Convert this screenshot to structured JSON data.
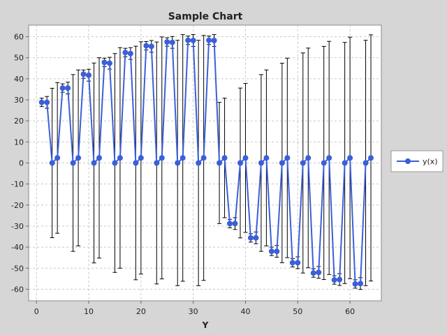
{
  "chart_data": {
    "type": "line",
    "title": "Sample Chart",
    "xlabel": "Y",
    "ylabel": "",
    "xlim": [
      -1.5,
      66
    ],
    "ylim": [
      -65.5,
      65.5
    ],
    "xticks": [
      0,
      10,
      20,
      30,
      40,
      50,
      60
    ],
    "yticks": [
      60,
      50,
      40,
      30,
      20,
      10,
      0,
      -10,
      -20,
      -30,
      -40,
      -50,
      -60
    ],
    "grid": true,
    "legend_position": "right",
    "series": [
      {
        "name": "y(x)",
        "color": "#3a5fd9",
        "x": [
          1,
          2,
          3,
          4,
          5,
          6,
          7,
          8,
          9,
          10,
          11,
          12,
          13,
          14,
          15,
          16,
          17,
          18,
          19,
          20,
          21,
          22,
          23,
          24,
          25,
          26,
          27,
          28,
          29,
          30,
          31,
          32,
          33,
          34,
          35,
          36,
          37,
          38,
          39,
          40,
          41,
          42,
          43,
          44,
          45,
          46,
          47,
          48,
          49,
          50,
          51,
          52,
          53,
          54,
          55,
          56,
          57,
          58,
          59,
          60,
          61,
          62,
          63,
          64
        ],
        "y": [
          28.8,
          28.8,
          0,
          2.4,
          35.6,
          35.6,
          0,
          2.4,
          42.2,
          41.7,
          0,
          2.4,
          47.8,
          47.4,
          0,
          2.4,
          52.5,
          52.0,
          0,
          2.4,
          55.7,
          55.4,
          0,
          2.4,
          57.5,
          57.3,
          0,
          2.4,
          58.3,
          58.2,
          0,
          2.4,
          58.3,
          58.2,
          0,
          2.4,
          -28.8,
          -28.8,
          0,
          2.4,
          -35.6,
          -35.6,
          0,
          2.4,
          -42.0,
          -42.0,
          0,
          2.4,
          -47.4,
          -47.4,
          0,
          2.4,
          -52.3,
          -52.0,
          0,
          2.4,
          -55.6,
          -55.4,
          0,
          2.4,
          -57.5,
          -57.3,
          0,
          2.4
        ],
        "err_low": [
          2.0,
          2.8,
          35.5,
          35.8,
          2.0,
          2.8,
          42.0,
          41.8,
          2.0,
          2.8,
          47.5,
          47.6,
          2.0,
          2.8,
          52.0,
          52.4,
          2.0,
          2.8,
          55.5,
          55.2,
          2.0,
          2.8,
          57.5,
          57.5,
          2.0,
          2.8,
          58.3,
          58.6,
          2.0,
          2.8,
          58.3,
          58.2,
          2.0,
          2.8,
          28.8,
          28.4,
          2.0,
          2.8,
          35.6,
          35.4,
          2.0,
          2.8,
          42.0,
          41.8,
          2.0,
          2.8,
          47.4,
          47.4,
          2.0,
          2.8,
          52.3,
          52.2,
          2.0,
          2.8,
          55.4,
          55.4,
          2.0,
          2.8,
          57.3,
          57.4,
          2.0,
          2.8,
          58.3,
          58.5
        ],
        "err_high": [
          2.0,
          2.8,
          35.5,
          35.8,
          2.0,
          2.8,
          42.0,
          41.8,
          2.0,
          2.8,
          47.5,
          47.6,
          2.0,
          2.8,
          52.0,
          52.4,
          2.0,
          2.8,
          55.5,
          55.2,
          2.0,
          2.8,
          57.5,
          57.5,
          2.0,
          2.8,
          58.3,
          58.6,
          2.0,
          2.8,
          58.3,
          58.2,
          2.0,
          2.8,
          28.8,
          28.4,
          2.0,
          2.8,
          35.6,
          35.4,
          2.0,
          2.8,
          42.0,
          41.8,
          2.0,
          2.8,
          47.4,
          47.4,
          2.0,
          2.8,
          52.3,
          52.2,
          2.0,
          2.8,
          55.4,
          55.4,
          2.0,
          2.8,
          57.3,
          57.4,
          2.0,
          2.8,
          58.3,
          58.5
        ]
      }
    ]
  },
  "colors": {
    "background": "#d6d6d6",
    "plot_background": "#ffffff",
    "grid": "#c8c8c8",
    "error_bar": "#000000",
    "series": "#3a5fd9"
  }
}
